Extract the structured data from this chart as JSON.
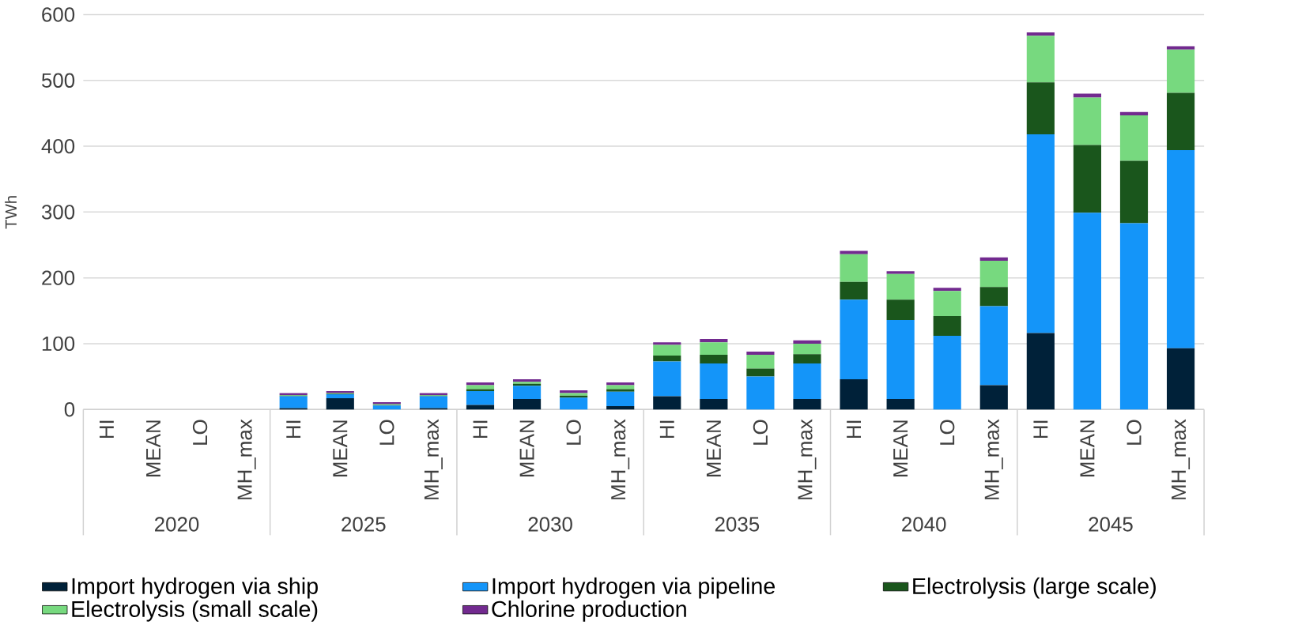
{
  "chart_data": {
    "type": "bar",
    "stacked": true,
    "ylabel": "TWh",
    "categories": [
      "HI",
      "MEAN",
      "LO",
      "MH_max",
      "HI",
      "MEAN",
      "LO",
      "MH_max",
      "HI",
      "MEAN",
      "LO",
      "MH_max",
      "HI",
      "MEAN",
      "LO",
      "MH_max",
      "HI",
      "MEAN",
      "LO",
      "MH_max",
      "HI",
      "MEAN",
      "LO",
      "MH_max"
    ],
    "annotations": [
      "2020",
      "2025",
      "2030",
      "2035",
      "2040",
      "2045"
    ],
    "series": [
      {
        "name": "Import hydrogen via ship",
        "color": "#002139",
        "values": [
          0,
          0,
          0,
          0,
          2,
          17,
          0,
          2,
          7,
          16,
          0,
          5,
          20,
          16,
          0,
          16,
          46,
          16,
          0,
          37,
          116,
          0,
          0,
          93
        ]
      },
      {
        "name": "Import hydrogen via pipeline",
        "color": "#1495f9",
        "values": [
          0,
          0,
          0,
          0,
          18,
          6,
          6,
          18,
          21,
          20,
          18,
          22,
          53,
          54,
          50,
          54,
          121,
          120,
          112,
          120,
          302,
          299,
          283,
          301
        ]
      },
      {
        "name": "Electrolysis (large scale)",
        "color": "#1a561c",
        "values": [
          0,
          0,
          0,
          0,
          1,
          1,
          1,
          1,
          3,
          3,
          3,
          4,
          9,
          13,
          12,
          14,
          27,
          31,
          30,
          29,
          79,
          103,
          95,
          87
        ]
      },
      {
        "name": "Electrolysis (small scale)",
        "color": "#77d97f",
        "values": [
          0,
          0,
          0,
          0,
          1,
          1,
          1,
          1,
          6,
          3,
          4,
          6,
          16,
          19,
          21,
          16,
          42,
          39,
          38,
          40,
          71,
          72,
          69,
          66
        ]
      },
      {
        "name": "Chlorine production",
        "color": "#722a8f",
        "values": [
          0,
          0,
          0,
          0,
          3,
          3,
          3,
          3,
          4,
          4,
          4,
          4,
          4,
          5,
          5,
          5,
          5,
          4,
          5,
          5,
          5,
          6,
          5,
          5
        ]
      }
    ],
    "ylim": [
      0,
      600
    ],
    "yticks": [
      0,
      100,
      200,
      300,
      400,
      500,
      600
    ],
    "grid": "y",
    "legend": "bottom"
  }
}
